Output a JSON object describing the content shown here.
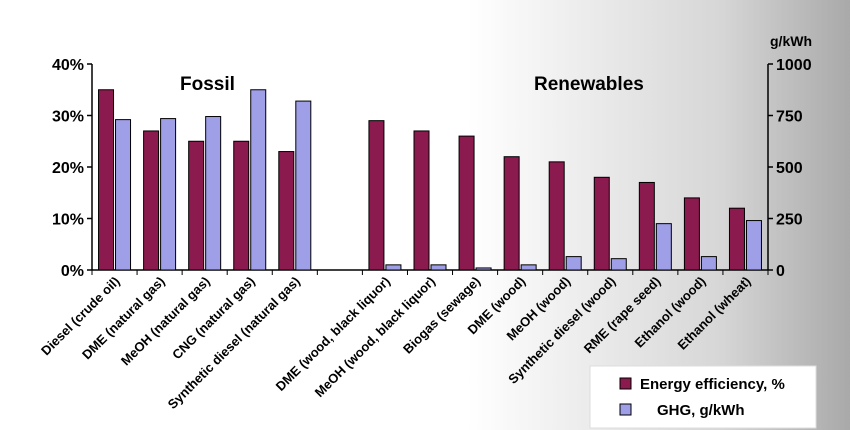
{
  "chart_data": {
    "type": "bar",
    "categories": [
      "Diesel (crude oil)",
      "DME (natural gas)",
      "MeOH (natural gas)",
      "CNG (natural gas)",
      "Synthetic diesel (natural gas)",
      "",
      "DME (wood, black liquor)",
      "MeOH (wood, black liquor)",
      "Biogas (sewage)",
      "DME (wood)",
      "MeOH (wood)",
      "Synthetic diesel (wood)",
      "RME (rape seed)",
      "Ethanol (wood)",
      "Ethanol (wheat)"
    ],
    "series": [
      {
        "name": "Energy efficiency, %",
        "axis": "left",
        "color": "#8b1a4e",
        "values": [
          35,
          27,
          25,
          25,
          23,
          null,
          29,
          27,
          26,
          22,
          21,
          18,
          17,
          14,
          12
        ]
      },
      {
        "name": "GHG, g/kWh",
        "axis": "right",
        "color": "#9f9fe8",
        "values": [
          730,
          735,
          745,
          875,
          820,
          null,
          25,
          25,
          10,
          25,
          65,
          55,
          225,
          65,
          240
        ]
      }
    ],
    "group_labels": [
      "Fossil",
      "Renewables"
    ],
    "y_left": {
      "ylim": [
        0,
        40
      ],
      "ticks": [
        "0%",
        "10%",
        "20%",
        "30%",
        "40%"
      ],
      "tick_values": [
        0,
        10,
        20,
        30,
        40
      ]
    },
    "y_right": {
      "label": "g/kWh",
      "ylim": [
        0,
        1000
      ],
      "ticks": [
        "0",
        "250",
        "500",
        "750",
        "1000"
      ],
      "tick_values": [
        0,
        250,
        500,
        750,
        1000
      ]
    },
    "grid": false,
    "legend_position": "bottom-right"
  }
}
